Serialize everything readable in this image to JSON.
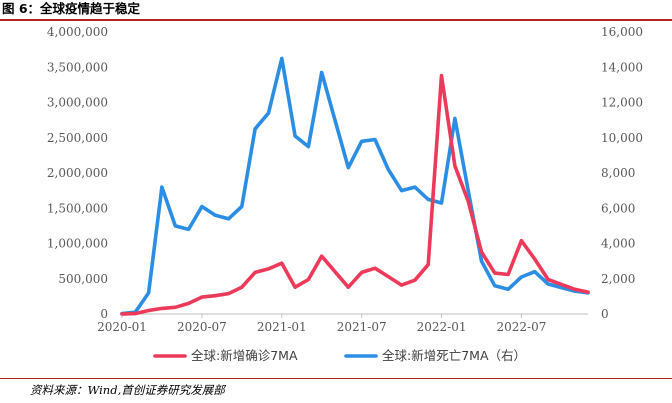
{
  "figure": {
    "title": "图 6：全球疫情趋于稳定",
    "source": "资料来源：Wind,首创证券研究发展部"
  },
  "colors": {
    "confirmed": "#ee3a5a",
    "deaths": "#2b8ee4",
    "accent_rule": "#b22222",
    "axis": "#bfbfbf",
    "tick_text": "#595959"
  },
  "chart_data": {
    "type": "line",
    "title": "",
    "xlabel": "",
    "ylabel": "",
    "x_ticks": [
      "2020-01",
      "2020-07",
      "2021-01",
      "2021-07",
      "2022-01",
      "2022-07"
    ],
    "y_left_ticks": [
      "0",
      "500,000",
      "1,000,000",
      "1,500,000",
      "2,000,000",
      "2,500,000",
      "3,000,000",
      "3,500,000",
      "4,000,000"
    ],
    "y_right_ticks": [
      "0",
      "2,000",
      "4,000",
      "6,000",
      "8,000",
      "10,000",
      "12,000",
      "14,000",
      "16,000"
    ],
    "y_left_lim": [
      0,
      4000000
    ],
    "y_right_lim": [
      0,
      16000
    ],
    "x_range": [
      "2020-01",
      "2022-12"
    ],
    "legend_position": "bottom",
    "grid": false,
    "series": [
      {
        "name": "全球:新增确诊7MA",
        "axis": "left",
        "x": [
          "2020-01",
          "2020-02",
          "2020-03",
          "2020-04",
          "2020-05",
          "2020-06",
          "2020-07",
          "2020-08",
          "2020-09",
          "2020-10",
          "2020-11",
          "2020-12",
          "2021-01",
          "2021-02",
          "2021-03",
          "2021-04",
          "2021-05",
          "2021-06",
          "2021-07",
          "2021-08",
          "2021-09",
          "2021-10",
          "2021-11",
          "2021-12",
          "2022-01",
          "2022-02",
          "2022-03",
          "2022-04",
          "2022-05",
          "2022-06",
          "2022-07",
          "2022-08",
          "2022-09",
          "2022-10",
          "2022-11",
          "2022-12"
        ],
        "values": [
          1000,
          5000,
          50000,
          80000,
          95000,
          150000,
          240000,
          260000,
          290000,
          380000,
          590000,
          640000,
          720000,
          380000,
          490000,
          820000,
          600000,
          380000,
          590000,
          650000,
          530000,
          410000,
          480000,
          700000,
          3380000,
          2100000,
          1600000,
          880000,
          580000,
          560000,
          1040000,
          780000,
          490000,
          420000,
          350000,
          310000
        ]
      },
      {
        "name": "全球:新增死亡7MA（右）",
        "axis": "right",
        "x": [
          "2020-01",
          "2020-02",
          "2020-03",
          "2020-04",
          "2020-05",
          "2020-06",
          "2020-07",
          "2020-08",
          "2020-09",
          "2020-10",
          "2020-11",
          "2020-12",
          "2021-01",
          "2021-02",
          "2021-03",
          "2021-04",
          "2021-05",
          "2021-06",
          "2021-07",
          "2021-08",
          "2021-09",
          "2021-10",
          "2021-11",
          "2021-12",
          "2022-01",
          "2022-02",
          "2022-03",
          "2022-04",
          "2022-05",
          "2022-06",
          "2022-07",
          "2022-08",
          "2022-09",
          "2022-10",
          "2022-11",
          "2022-12"
        ],
        "values": [
          20,
          100,
          1200,
          7200,
          5000,
          4800,
          6100,
          5600,
          5400,
          6100,
          10500,
          11400,
          14500,
          10100,
          9500,
          13700,
          11000,
          8300,
          9800,
          9900,
          8200,
          7000,
          7200,
          6500,
          6300,
          11100,
          7000,
          3000,
          1600,
          1400,
          2100,
          2400,
          1700,
          1500,
          1300,
          1200
        ]
      }
    ]
  }
}
